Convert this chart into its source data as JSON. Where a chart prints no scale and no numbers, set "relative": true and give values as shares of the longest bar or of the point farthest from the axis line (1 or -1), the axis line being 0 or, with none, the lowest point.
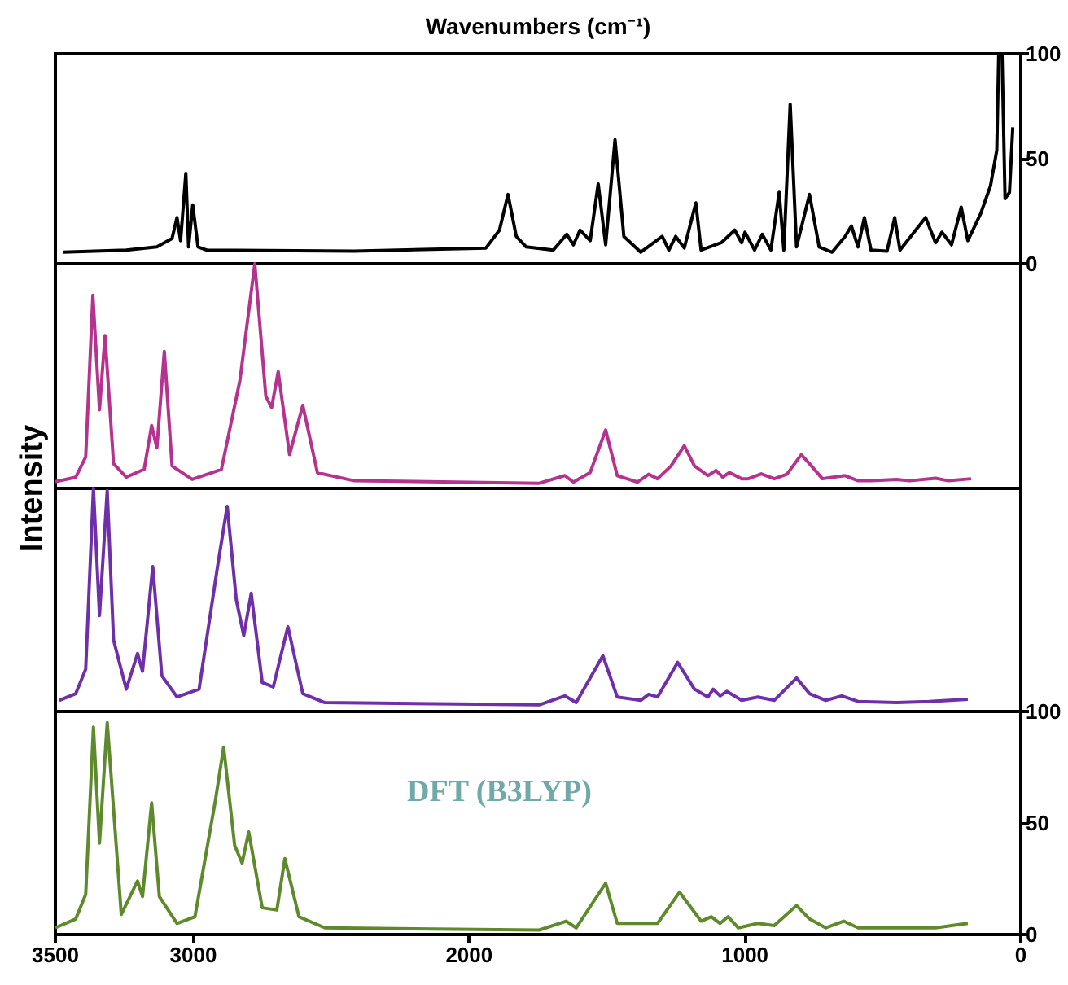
{
  "chart_data": [
    {
      "type": "line",
      "xlabel": "Wavenumbers (cm⁻¹)",
      "xlim": [
        3500,
        0
      ],
      "ylim": [
        0,
        100
      ],
      "yticks": [
        0,
        50,
        100
      ],
      "tick_labels": "y",
      "marker": "none",
      "series": [
        {
          "color": "#000000",
          "x": [
            3472,
            3243,
            3132,
            3077,
            3059,
            3046,
            3027,
            3017,
            3002,
            2983,
            2952,
            2416,
            1939,
            1890,
            1859,
            1829,
            1793,
            1695,
            1646,
            1622,
            1598,
            1561,
            1532,
            1505,
            1471,
            1439,
            1378,
            1300,
            1276,
            1251,
            1220,
            1178,
            1159,
            1086,
            1037,
            1012,
            1000,
            965,
            937,
            906,
            876,
            859,
            836,
            813,
            766,
            731,
            684,
            637,
            614,
            590,
            567,
            543,
            485,
            457,
            438,
            345,
            309,
            286,
            251,
            216,
            192,
            145,
            110,
            87,
            80,
            68,
            57,
            41,
            29
          ],
          "values": [
            5.5,
            6.5,
            8,
            12,
            22,
            11,
            43,
            8,
            28,
            8,
            6.5,
            6,
            7.5,
            16,
            33,
            13,
            8,
            6.5,
            14,
            9,
            16,
            11,
            38,
            9,
            59,
            13,
            5.5,
            13,
            6.5,
            13,
            7.5,
            29,
            6.5,
            10,
            16,
            10,
            15,
            6.5,
            14,
            6.5,
            34,
            6.5,
            76,
            8,
            33,
            8,
            5.5,
            13,
            18,
            8,
            22,
            6.5,
            6,
            22,
            6.5,
            22,
            10,
            15,
            9,
            27,
            11,
            24,
            37,
            54,
            100,
            100,
            31,
            34,
            65
          ]
        }
      ]
    },
    {
      "type": "line",
      "ylabel": "Intensity",
      "xlim": [
        3500,
        0
      ],
      "relative": true,
      "tick_labels": false,
      "marker": "none",
      "series": [
        {
          "color": "#b5338f",
          "x": [
            3500,
            3426,
            3390,
            3364,
            3340,
            3320,
            3289,
            3243,
            3178,
            3151,
            3132,
            3105,
            3077,
            3004,
            2898,
            2831,
            2777,
            2737,
            2716,
            2692,
            2651,
            2603,
            2550,
            2416,
            1746,
            1653,
            1622,
            1561,
            1505,
            1463,
            1390,
            1349,
            1317,
            1268,
            1220,
            1183,
            1134,
            1105,
            1080,
            1056,
            1012,
            988,
            941,
            894,
            848,
            796,
            766,
            719,
            637,
            590,
            543,
            450,
            403,
            309,
            262,
            180
          ],
          "values": [
            0.03,
            0.05,
            0.14,
            0.86,
            0.35,
            0.68,
            0.11,
            0.05,
            0.085,
            0.28,
            0.18,
            0.61,
            0.1,
            0.04,
            0.085,
            0.48,
            1,
            0.41,
            0.36,
            0.52,
            0.15,
            0.37,
            0.07,
            0.034,
            0.023,
            0.057,
            0.028,
            0.071,
            0.26,
            0.057,
            0.028,
            0.063,
            0.043,
            0.1,
            0.19,
            0.1,
            0.057,
            0.08,
            0.05,
            0.071,
            0.043,
            0.043,
            0.065,
            0.043,
            0.063,
            0.15,
            0.11,
            0.043,
            0.057,
            0.034,
            0.034,
            0.04,
            0.034,
            0.045,
            0.034,
            0.043
          ]
        }
      ]
    },
    {
      "type": "line",
      "xlim": [
        3500,
        0
      ],
      "relative": true,
      "tick_labels": false,
      "marker": "none",
      "series": [
        {
          "color": "#6f2fa8",
          "x": [
            3486,
            3426,
            3390,
            3362,
            3340,
            3312,
            3289,
            3243,
            3202,
            3184,
            3147,
            3114,
            3059,
            2979,
            2912,
            2877,
            2844,
            2817,
            2790,
            2750,
            2710,
            2657,
            2603,
            2523,
            1746,
            1653,
            1612,
            1515,
            1463,
            1378,
            1349,
            1317,
            1244,
            1183,
            1134,
            1115,
            1090,
            1066,
            1012,
            953,
            894,
            813,
            766,
            707,
            649,
            590,
            450,
            333,
            192
          ],
          "values": [
            0.05,
            0.08,
            0.19,
            1,
            0.43,
            0.99,
            0.32,
            0.1,
            0.26,
            0.18,
            0.65,
            0.16,
            0.065,
            0.1,
            0.65,
            0.92,
            0.5,
            0.34,
            0.53,
            0.13,
            0.11,
            0.38,
            0.08,
            0.04,
            0.03,
            0.07,
            0.04,
            0.25,
            0.065,
            0.05,
            0.077,
            0.065,
            0.22,
            0.1,
            0.065,
            0.1,
            0.07,
            0.09,
            0.05,
            0.065,
            0.05,
            0.15,
            0.08,
            0.05,
            0.07,
            0.045,
            0.04,
            0.045,
            0.055
          ]
        }
      ]
    },
    {
      "type": "line",
      "xlim": [
        3500,
        0
      ],
      "xticks": [
        3500,
        3000,
        2000,
        1000,
        0
      ],
      "ylim": [
        0,
        100
      ],
      "yticks": [
        0,
        50,
        100
      ],
      "marker": "none",
      "annotations": [
        "DFT (B3LYP)"
      ],
      "series": [
        {
          "color": "#5e8a2c",
          "x": [
            3500,
            3426,
            3390,
            3362,
            3340,
            3312,
            3261,
            3202,
            3184,
            3151,
            3123,
            3059,
            2994,
            2920,
            2890,
            2850,
            2823,
            2799,
            2750,
            2697,
            2668,
            2617,
            2523,
            1746,
            1648,
            1612,
            1505,
            1463,
            1366,
            1317,
            1237,
            1159,
            1122,
            1090,
            1061,
            1024,
            953,
            894,
            813,
            766,
            707,
            642,
            590,
            450,
            309,
            192
          ],
          "values": [
            3,
            7,
            18,
            93,
            41,
            95,
            9,
            24,
            17,
            59,
            17,
            5,
            8,
            60,
            84,
            40,
            32,
            46,
            12,
            11,
            34,
            8,
            3,
            2,
            6,
            3,
            23,
            5,
            5,
            5,
            19,
            6,
            8,
            5,
            8,
            3,
            5,
            4,
            13,
            7,
            3,
            6,
            3,
            3,
            3,
            5
          ]
        }
      ]
    }
  ]
}
